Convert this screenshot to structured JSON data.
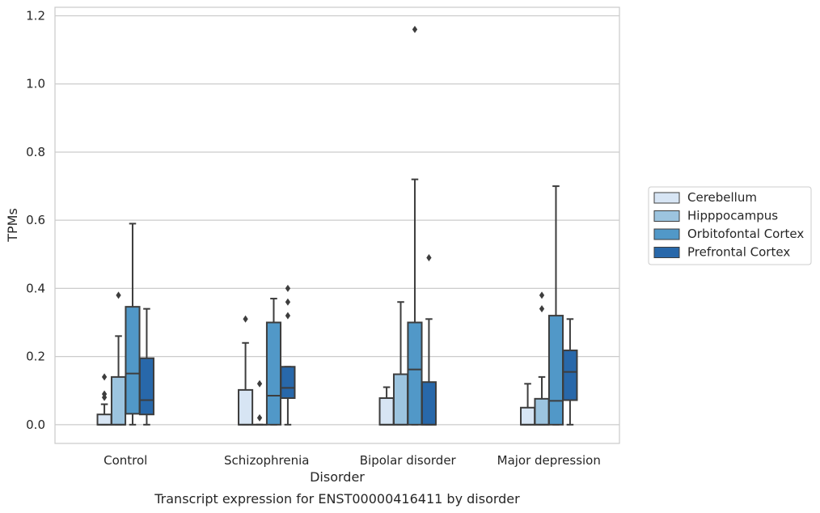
{
  "chart_data": {
    "type": "box",
    "title": "",
    "caption": "Transcript expression for ENST00000416411 by disorder",
    "xlabel": "Disorder",
    "ylabel": "TPMs",
    "ylim": [
      -0.055,
      1.225
    ],
    "yticks": [
      0.0,
      0.2,
      0.4,
      0.6,
      0.8,
      1.0,
      1.2
    ],
    "ytick_labels": [
      "0.0",
      "0.2",
      "0.4",
      "0.6",
      "0.8",
      "1.0",
      "1.2"
    ],
    "grid": "horizontal",
    "legend_position": "right",
    "categories": [
      "Control",
      "Schizophrenia",
      "Bipolar disorder",
      "Major depression"
    ],
    "series": [
      {
        "name": "Cerebellum",
        "color": "#d7e5f4",
        "boxes": [
          {
            "q1": 0.0,
            "median": 0.0,
            "q3": 0.03,
            "whislo": 0.0,
            "whishi": 0.06,
            "fliers": [
              0.08,
              0.09,
              0.14
            ]
          },
          {
            "q1": 0.0,
            "median": 0.0,
            "q3": 0.102,
            "whislo": 0.0,
            "whishi": 0.24,
            "fliers": [
              0.31
            ]
          },
          {
            "q1": 0.0,
            "median": 0.0,
            "q3": 0.078,
            "whislo": 0.0,
            "whishi": 0.11,
            "fliers": []
          },
          {
            "q1": 0.0,
            "median": 0.0,
            "q3": 0.05,
            "whislo": 0.0,
            "whishi": 0.12,
            "fliers": []
          }
        ]
      },
      {
        "name": "Hipppocampus",
        "color": "#9cc4df",
        "boxes": [
          {
            "q1": 0.0,
            "median": 0.0,
            "q3": 0.14,
            "whislo": 0.0,
            "whishi": 0.26,
            "fliers": [
              0.38
            ]
          },
          {
            "q1": 0.0,
            "median": 0.0,
            "q3": 0.0,
            "whislo": 0.0,
            "whishi": 0.0,
            "fliers": [
              0.02,
              0.12
            ]
          },
          {
            "q1": 0.0,
            "median": 0.0,
            "q3": 0.148,
            "whislo": 0.0,
            "whishi": 0.36,
            "fliers": []
          },
          {
            "q1": 0.0,
            "median": 0.0,
            "q3": 0.076,
            "whislo": 0.0,
            "whishi": 0.14,
            "fliers": [
              0.34,
              0.38
            ]
          }
        ]
      },
      {
        "name": "Orbitofontal Cortex",
        "color": "#5198c8",
        "boxes": [
          {
            "q1": 0.032,
            "median": 0.15,
            "q3": 0.346,
            "whislo": 0.0,
            "whishi": 0.59,
            "fliers": []
          },
          {
            "q1": 0.0,
            "median": 0.085,
            "q3": 0.3,
            "whislo": 0.0,
            "whishi": 0.37,
            "fliers": []
          },
          {
            "q1": 0.0,
            "median": 0.162,
            "q3": 0.3,
            "whislo": 0.0,
            "whishi": 0.72,
            "fliers": [
              1.16
            ]
          },
          {
            "q1": 0.0,
            "median": 0.07,
            "q3": 0.32,
            "whislo": 0.0,
            "whishi": 0.7,
            "fliers": []
          }
        ]
      },
      {
        "name": "Prefrontal Cortex",
        "color": "#2868aa",
        "boxes": [
          {
            "q1": 0.03,
            "median": 0.072,
            "q3": 0.195,
            "whislo": 0.0,
            "whishi": 0.34,
            "fliers": []
          },
          {
            "q1": 0.078,
            "median": 0.108,
            "q3": 0.17,
            "whislo": 0.0,
            "whishi": 0.17,
            "fliers": [
              0.32,
              0.36,
              0.4
            ]
          },
          {
            "q1": 0.0,
            "median": 0.0,
            "q3": 0.125,
            "whislo": 0.0,
            "whishi": 0.31,
            "fliers": [
              0.49
            ]
          },
          {
            "q1": 0.072,
            "median": 0.155,
            "q3": 0.218,
            "whislo": 0.0,
            "whishi": 0.31,
            "fliers": []
          }
        ]
      }
    ]
  }
}
